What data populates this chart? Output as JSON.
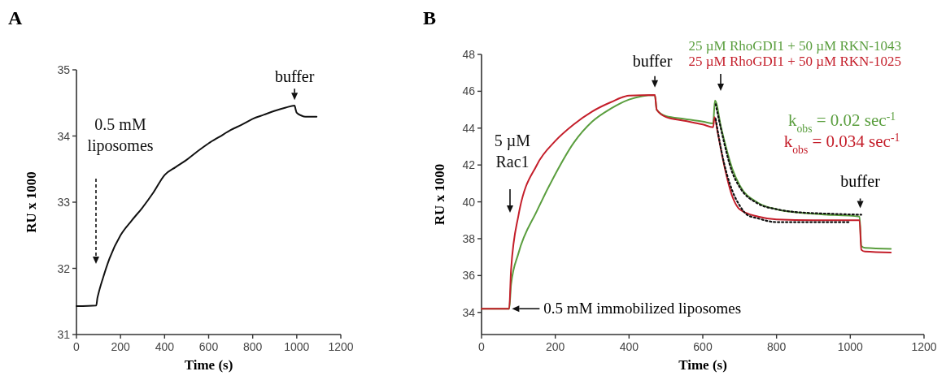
{
  "chart_data": [
    {
      "type": "line",
      "title": "A",
      "xlabel": "Time (s)",
      "ylabel": "RU x 1000",
      "xlim": [
        0,
        1200
      ],
      "ylim": [
        31,
        35
      ],
      "xticks": [
        0,
        200,
        400,
        600,
        800,
        1000,
        1200
      ],
      "yticks": [
        31,
        32,
        33,
        34,
        35
      ],
      "grid": false,
      "legend": false,
      "annotations": [
        "0.5 mM\nliposomes",
        {
          "text": "buffer",
          "x": 990,
          "y": 34.47
        }
      ],
      "series": [
        {
          "color": "#111111",
          "x": [
            0,
            90,
            95,
            100,
            120,
            150,
            200,
            250,
            300,
            350,
            400,
            450,
            500,
            550,
            600,
            650,
            700,
            750,
            800,
            850,
            900,
            950,
            990,
            995,
            1000,
            1020,
            1040,
            1090
          ],
          "values": [
            31.43,
            31.44,
            31.55,
            31.62,
            31.85,
            32.15,
            32.5,
            32.72,
            32.92,
            33.15,
            33.41,
            33.53,
            33.64,
            33.77,
            33.89,
            33.99,
            34.09,
            34.17,
            34.26,
            34.32,
            34.38,
            34.43,
            34.46,
            34.4,
            34.35,
            34.31,
            34.29,
            34.29
          ]
        }
      ]
    },
    {
      "type": "line",
      "title": "B",
      "xlabel": "Time (s)",
      "ylabel": "RU x 1000",
      "xlim": [
        0,
        1200
      ],
      "ylim": [
        32.8,
        48
      ],
      "xticks": [
        0,
        200,
        400,
        600,
        800,
        1000,
        1200
      ],
      "yticks": [
        34,
        36,
        38,
        40,
        42,
        44,
        46,
        48
      ],
      "grid": false,
      "legend": "top right",
      "annotations": [
        "5 µM\nRac1",
        {
          "text": "0.5 mM immobilized liposomes",
          "x": 78,
          "y": 34.2
        },
        {
          "text": "buffer",
          "x": 470,
          "y": 45.85
        },
        {
          "text": "buffer",
          "x": 1027,
          "y": 39.3
        },
        "k$_{obs}$ = 0.02 sec$^{-1}$",
        "k$_{obs}$ = 0.034 sec$^{-1}$"
      ],
      "series": [
        {
          "name": "25 µM RhoGDI1 + 50 µM RKN-1043",
          "color": "#5a9e3e",
          "x": [
            0,
            75,
            80,
            100,
            150,
            200,
            250,
            300,
            350,
            400,
            470,
            475,
            500,
            550,
            600,
            628,
            633,
            650,
            680,
            700,
            750,
            800,
            900,
            1025,
            1030,
            1040,
            1110
          ],
          "values": [
            34.2,
            34.2,
            35.5,
            37.2,
            39.5,
            41.5,
            43.2,
            44.35,
            45.05,
            45.55,
            45.8,
            45.0,
            44.65,
            44.5,
            44.35,
            44.25,
            45.5,
            44.0,
            41.8,
            40.9,
            39.95,
            39.6,
            39.35,
            39.2,
            37.6,
            37.5,
            37.45
          ]
        },
        {
          "name": "25 µM RhoGDI1 + 50 µM RKN-1025",
          "color": "#c41e2a",
          "x": [
            0,
            75,
            80,
            100,
            150,
            200,
            250,
            300,
            350,
            400,
            470,
            475,
            500,
            550,
            600,
            628,
            632,
            640,
            660,
            680,
            700,
            750,
            800,
            900,
            1025,
            1030,
            1040,
            1110
          ],
          "values": [
            34.2,
            34.2,
            36.3,
            39.25,
            42.0,
            43.3,
            44.2,
            44.9,
            45.4,
            45.76,
            45.8,
            45.0,
            44.6,
            44.4,
            44.2,
            44.05,
            44.6,
            43.8,
            41.8,
            40.3,
            39.6,
            39.2,
            39.05,
            39.0,
            39.0,
            37.4,
            37.3,
            37.25
          ]
        },
        {
          "color": "#111111",
          "line_style": "dotted",
          "x": [
            635,
            650,
            680,
            700,
            750,
            800,
            850,
            950,
            1030
          ],
          "values": [
            45.3,
            43.9,
            41.6,
            40.8,
            39.9,
            39.6,
            39.45,
            39.35,
            39.3
          ]
        },
        {
          "color": "#111111",
          "line_style": "dotted",
          "x": [
            635,
            650,
            680,
            700,
            720,
            750,
            800,
            900,
            1000
          ],
          "values": [
            44.5,
            42.8,
            40.6,
            39.8,
            39.3,
            39.1,
            38.9,
            38.9,
            38.9
          ]
        }
      ]
    }
  ]
}
